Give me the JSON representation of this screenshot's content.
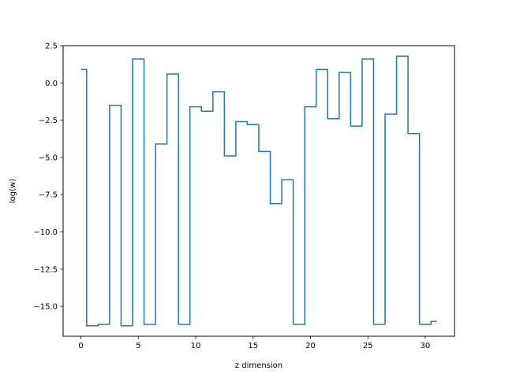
{
  "chart_data": {
    "type": "line",
    "drawstyle": "steps-mid",
    "title": "",
    "xlabel": "z dimension",
    "ylabel": "log(w)",
    "xlim": [
      -1.55,
      32.55
    ],
    "ylim": [
      -17.0,
      2.5
    ],
    "xticks": [
      0,
      5,
      10,
      15,
      20,
      25,
      30
    ],
    "xtick_labels": [
      "0",
      "5",
      "10",
      "15",
      "20",
      "25",
      "30"
    ],
    "yticks": [
      2.5,
      0.0,
      -2.5,
      -5.0,
      -7.5,
      -10.0,
      -12.5,
      -15.0
    ],
    "ytick_labels": [
      "2.5",
      "0.0",
      "−2.5",
      "−5.0",
      "−7.5",
      "−10.0",
      "−12.5",
      "−15.0"
    ],
    "grid": false,
    "series_color": "#1f77b4",
    "series": [
      {
        "x": [
          0,
          1,
          2,
          3,
          4,
          5,
          6,
          7,
          8,
          9,
          10,
          11,
          12,
          13,
          14,
          15,
          16,
          17,
          18,
          19,
          20,
          21,
          22,
          23,
          24,
          25,
          26,
          27,
          28,
          29,
          30,
          31
        ],
        "values": [
          0.9,
          -16.3,
          -16.2,
          -1.5,
          -16.3,
          1.6,
          -16.2,
          -4.1,
          0.6,
          -16.2,
          -1.6,
          -1.9,
          -0.6,
          -4.9,
          -2.6,
          -2.8,
          -4.6,
          -8.1,
          -6.5,
          -16.2,
          -1.6,
          0.9,
          -2.4,
          0.7,
          -2.9,
          1.6,
          -16.2,
          -2.1,
          1.8,
          -3.4,
          -16.2,
          -16.0
        ]
      }
    ]
  }
}
